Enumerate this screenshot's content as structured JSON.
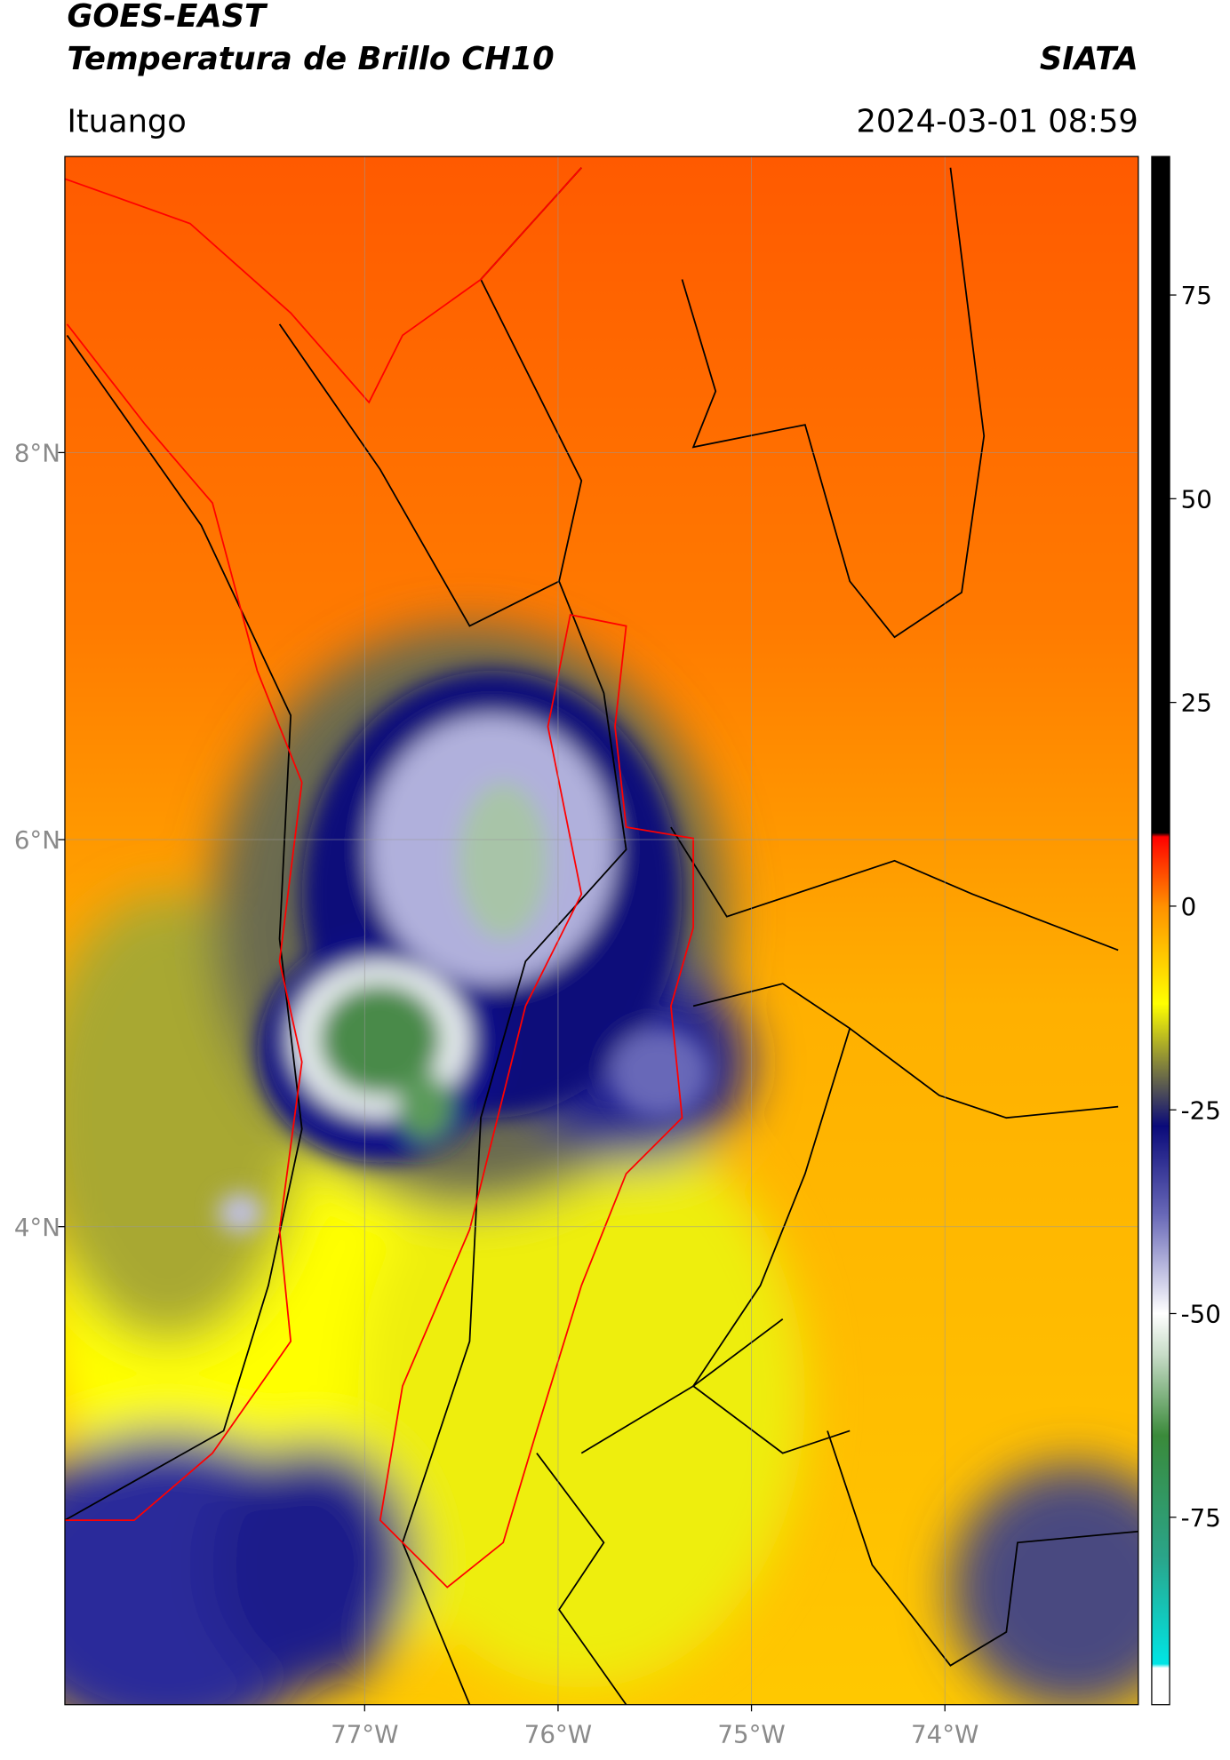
{
  "header": {
    "title": "GOES-EAST",
    "subtitle": "Temperatura de Brillo CH10",
    "source": "SIATA",
    "location": "Ituango",
    "timestamp": "2024-03-01 08:59"
  },
  "map": {
    "xlim": [
      -78.55,
      -73.0
    ],
    "ylim": [
      1.53,
      9.53
    ],
    "xticks": [
      {
        "value": -77,
        "label": "77°W"
      },
      {
        "value": -76,
        "label": "76°W"
      },
      {
        "value": -75,
        "label": "75°W"
      },
      {
        "value": -74,
        "label": "74°W"
      }
    ],
    "yticks": [
      {
        "value": 8,
        "label": "8°N"
      },
      {
        "value": 6,
        "label": "6°N"
      },
      {
        "value": 4,
        "label": "4°N"
      }
    ],
    "grid": true
  },
  "colorbar": {
    "lim": [
      -98,
      92
    ],
    "ticks": [
      75,
      50,
      25,
      0,
      -25,
      -50,
      -75
    ],
    "stops": [
      {
        "value": -98,
        "color": "#ffffff"
      },
      {
        "value": -93.5,
        "color": "#ffffff"
      },
      {
        "value": -93,
        "color": "#00e5e5"
      },
      {
        "value": -80,
        "color": "#2aa58a"
      },
      {
        "value": -65,
        "color": "#3a8a3a"
      },
      {
        "value": -55,
        "color": "#c8dcc8"
      },
      {
        "value": -50,
        "color": "#ffffff"
      },
      {
        "value": -38,
        "color": "#6a6ab8"
      },
      {
        "value": -27,
        "color": "#0a0a7a"
      },
      {
        "value": -20,
        "color": "#7a7a40"
      },
      {
        "value": -12,
        "color": "#ffff00"
      },
      {
        "value": 0,
        "color": "#ff9000"
      },
      {
        "value": 7,
        "color": "#ff1a00"
      },
      {
        "value": 8.5,
        "color": "#ff0000"
      },
      {
        "value": 9,
        "color": "#000000"
      },
      {
        "value": 92,
        "color": "#000000"
      }
    ]
  }
}
